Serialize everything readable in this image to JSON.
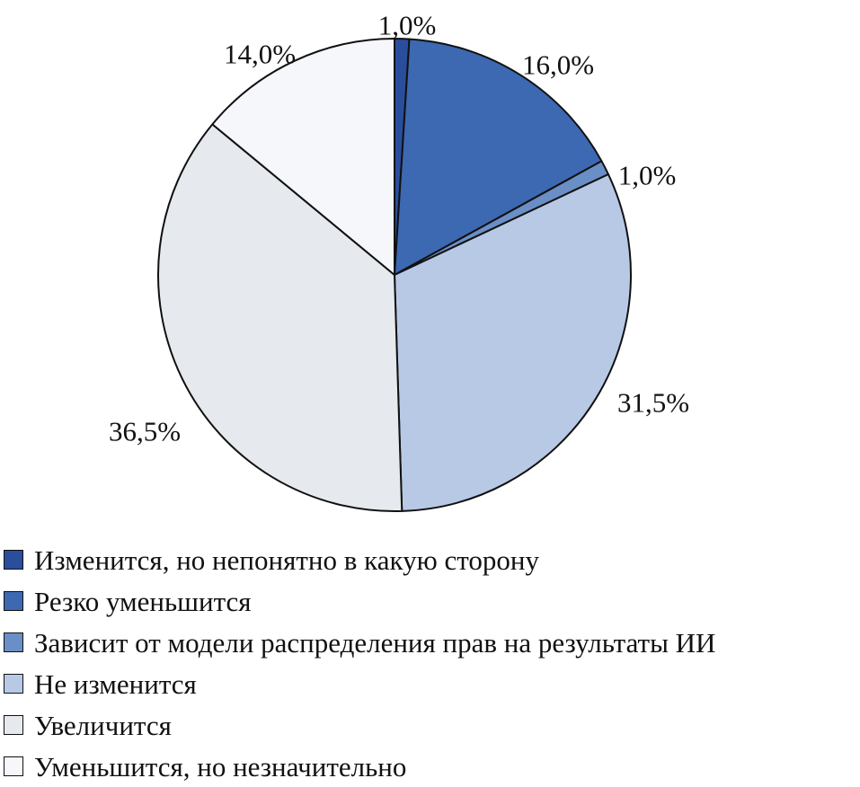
{
  "chart_data": {
    "type": "pie",
    "slices": [
      {
        "label": "Изменится, но непонятно в какую сторону",
        "value": 1.0,
        "value_label": "1,0%",
        "color": "#2A4E9B"
      },
      {
        "label": "Резко уменьшится",
        "value": 16.0,
        "value_label": "16,0%",
        "color": "#3D68B2"
      },
      {
        "label": "Зависит от модели распределения прав на результаты ИИ",
        "value": 1.0,
        "value_label": "1,0%",
        "color": "#6A8EC6"
      },
      {
        "label": "Не изменится",
        "value": 31.5,
        "value_label": "31,5%",
        "color": "#B8C9E6"
      },
      {
        "label": "Увеличится",
        "value": 36.5,
        "value_label": "36,5%",
        "color": "#E6E9ED"
      },
      {
        "label": "Уменьшится, но незначительно",
        "value": 14.0,
        "value_label": "14,0%",
        "color": "#F6F7FA"
      }
    ],
    "start_angle": "12 o'clock",
    "direction": "clockwise",
    "legend_position": "bottom"
  }
}
